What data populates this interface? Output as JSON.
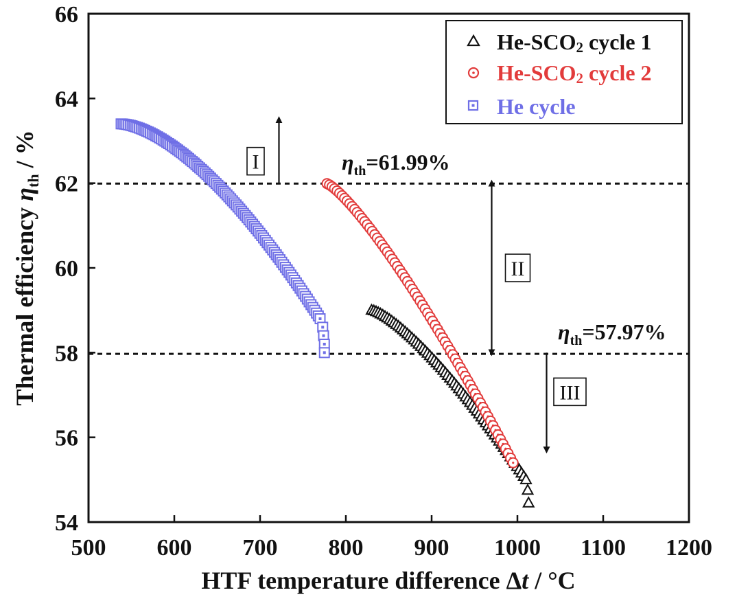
{
  "chart_data": {
    "type": "scatter",
    "title": "",
    "xlabel": "HTF temperature difference Δt / °C",
    "xlabel_main": "HTF temperature difference Δ",
    "xlabel_italic": "t",
    "xlabel_unit": " / °C",
    "ylabel": "Thermal efficiency η_th / %",
    "ylabel_main": "Thermal efficiency ",
    "ylabel_symbol": "η",
    "ylabel_sub": "th",
    "ylabel_unit": " / %",
    "xlim": [
      500,
      1200
    ],
    "ylim": [
      54,
      66
    ],
    "xticks": [
      "500",
      "600",
      "700",
      "800",
      "900",
      "1000",
      "1100",
      "1200"
    ],
    "yticks": [
      "54",
      "56",
      "58",
      "60",
      "62",
      "64",
      "66"
    ],
    "legend_position": "top-right",
    "series": [
      {
        "name": "He-SCO₂ cycle 1",
        "label_pre": "He-SCO",
        "label_sub": "2",
        "label_post": " cycle 1",
        "marker": "triangle",
        "color": "#111111",
        "x_range": [
          830,
          1010
        ],
        "y_range": [
          59.0,
          55.0
        ],
        "curve_exponent": 1.35,
        "points": 70,
        "extra_points": [
          [
            1012,
            54.75
          ],
          [
            1013,
            54.45
          ]
        ]
      },
      {
        "name": "He-SCO₂ cycle 2",
        "label_pre": "He-SCO",
        "label_sub": "2",
        "label_post": " cycle 2",
        "marker": "circle",
        "color": "#e23b3b",
        "x_range": [
          778,
          995
        ],
        "y_range": [
          61.99,
          55.4
        ],
        "curve_exponent": 1.25,
        "points": 75,
        "extra_points": []
      },
      {
        "name": "He cycle",
        "label_pre": "He cycle",
        "label_sub": "",
        "label_post": "",
        "marker": "square",
        "color": "#6f6fe6",
        "x_range": [
          538,
          770
        ],
        "y_range": [
          63.4,
          58.8
        ],
        "curve_exponent": 1.6,
        "points": 110,
        "extra_points": [
          [
            773,
            58.6
          ],
          [
            774,
            58.4
          ],
          [
            775,
            58.2
          ],
          [
            775,
            58.0
          ]
        ]
      }
    ],
    "reference_lines": [
      {
        "y": 61.99,
        "label_symbol": "η",
        "label_sub": "th",
        "label_value": "=61.99%"
      },
      {
        "y": 57.97,
        "label_symbol": "η",
        "label_sub": "th",
        "label_value": "=57.97%"
      }
    ],
    "regions": [
      {
        "label": "I",
        "direction": "up",
        "x": 722,
        "from_y": 62.0,
        "to_y": 63.5
      },
      {
        "label": "II",
        "direction": "both",
        "x": 970,
        "from_y": 62.0,
        "to_y": 58.0
      },
      {
        "label": "III",
        "direction": "down",
        "x": 1034,
        "from_y": 58.0,
        "to_y": 55.7
      }
    ]
  }
}
